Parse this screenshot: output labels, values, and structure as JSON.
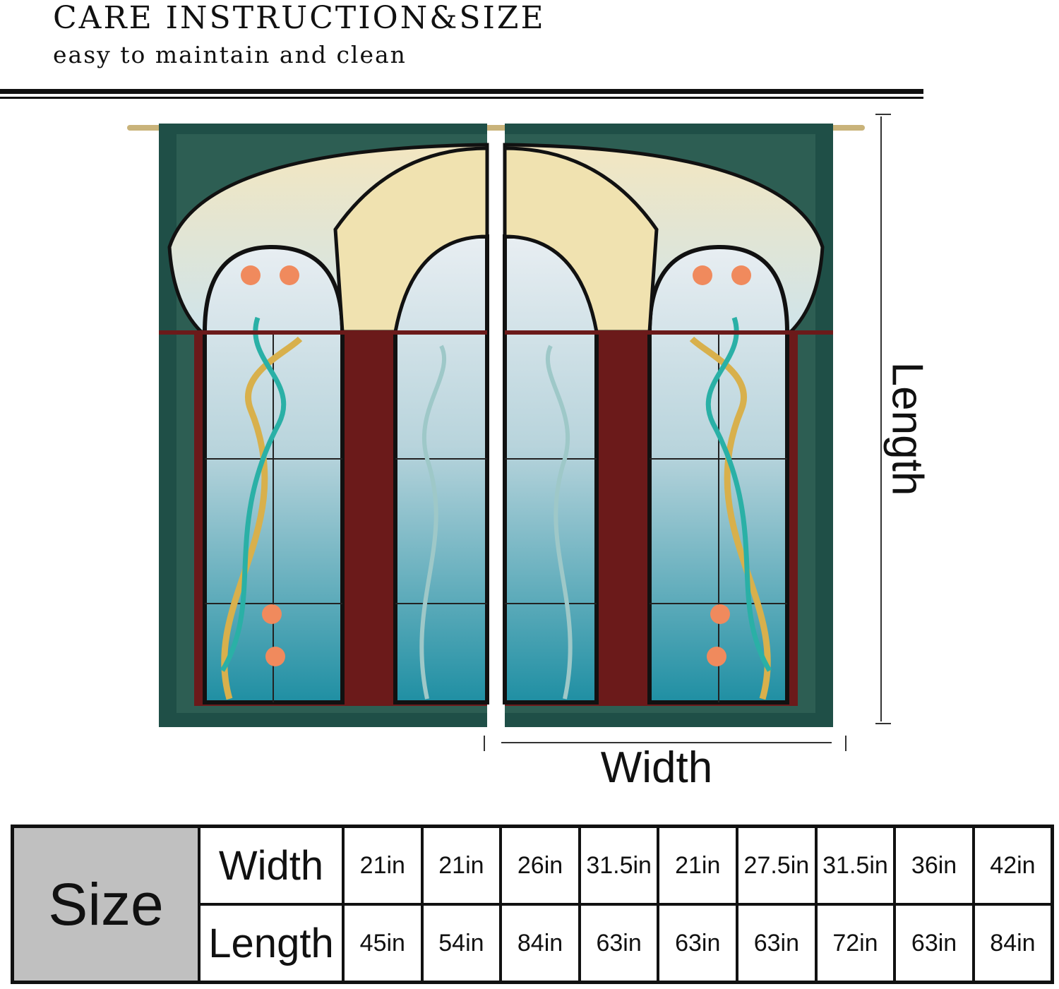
{
  "header": {
    "title": "CARE INSTRUCTION&SIZE",
    "subtitle": "easy to maintain and clean"
  },
  "diagram": {
    "length_label": "Length",
    "width_label": "Width",
    "colors": {
      "curtain_border": "#1f4f47",
      "frame": "#6b1a1a",
      "glass_teal": "#2b9aa8",
      "gold": "#d8b04c",
      "flower": "#f08a5d"
    }
  },
  "size_table": {
    "header": "Size",
    "row_labels": [
      "Width",
      "Length"
    ],
    "widths": [
      "21in",
      "21in",
      "26in",
      "31.5in",
      "21in",
      "27.5in",
      "31.5in",
      "36in",
      "42in"
    ],
    "lengths": [
      "45in",
      "54in",
      "84in",
      "63in",
      "63in",
      "63in",
      "72in",
      "63in",
      "84in"
    ]
  }
}
